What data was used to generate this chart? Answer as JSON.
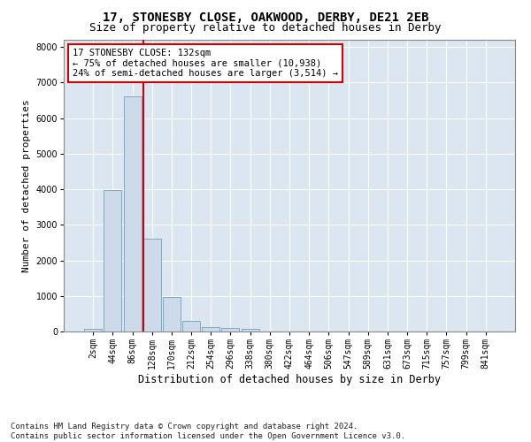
{
  "title1": "17, STONESBY CLOSE, OAKWOOD, DERBY, DE21 2EB",
  "title2": "Size of property relative to detached houses in Derby",
  "xlabel": "Distribution of detached houses by size in Derby",
  "ylabel": "Number of detached properties",
  "bar_color": "#cddaea",
  "bar_edgecolor": "#7aaac8",
  "background_color": "#dce6f0",
  "grid_color": "#ffffff",
  "vline_color": "#cc0000",
  "annotation_text": "17 STONESBY CLOSE: 132sqm\n← 75% of detached houses are smaller (10,938)\n24% of semi-detached houses are larger (3,514) →",
  "annotation_box_edgecolor": "#cc0000",
  "categories": [
    "2sqm",
    "44sqm",
    "86sqm",
    "128sqm",
    "170sqm",
    "212sqm",
    "254sqm",
    "296sqm",
    "338sqm",
    "380sqm",
    "422sqm",
    "464sqm",
    "506sqm",
    "547sqm",
    "589sqm",
    "631sqm",
    "673sqm",
    "715sqm",
    "757sqm",
    "799sqm",
    "841sqm"
  ],
  "values": [
    75,
    3975,
    6600,
    2620,
    960,
    305,
    130,
    110,
    80,
    0,
    0,
    0,
    0,
    0,
    0,
    0,
    0,
    0,
    0,
    0,
    0
  ],
  "ylim": [
    0,
    8200
  ],
  "yticks": [
    0,
    1000,
    2000,
    3000,
    4000,
    5000,
    6000,
    7000,
    8000
  ],
  "footnote": "Contains HM Land Registry data © Crown copyright and database right 2024.\nContains public sector information licensed under the Open Government Licence v3.0.",
  "title1_fontsize": 10,
  "title2_fontsize": 9,
  "xlabel_fontsize": 8.5,
  "ylabel_fontsize": 8,
  "tick_fontsize": 7,
  "annot_fontsize": 7.5,
  "footnote_fontsize": 6.5
}
